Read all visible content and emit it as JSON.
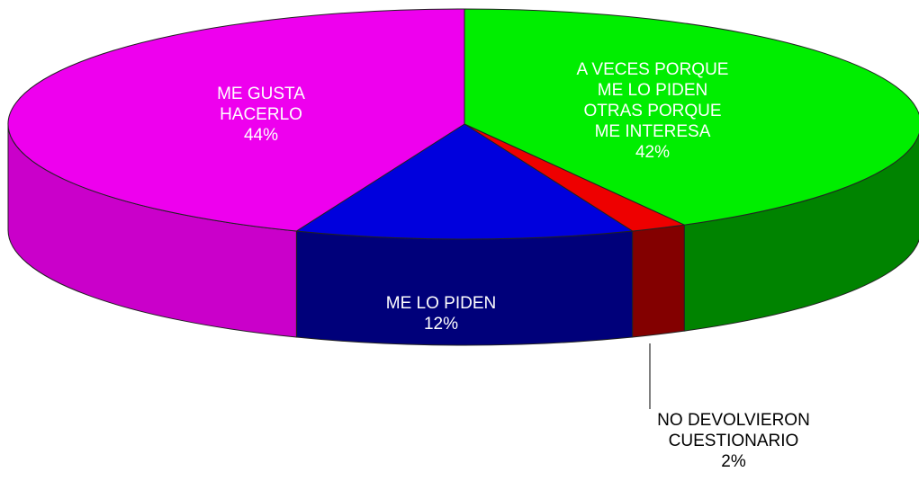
{
  "chart_data": {
    "type": "pie3d",
    "categories": [
      "A VECES PORQUE\nME LO PIDEN\nOTRAS PORQUE\nME INTERESA",
      "NO DEVOLVIERON\nCUESTIONARIO",
      "ME LO PIDEN",
      "ME GUSTA\nHACERLO"
    ],
    "values": [
      42,
      2,
      12,
      44
    ],
    "value_labels": [
      "42%",
      "2%",
      "12%",
      "44%"
    ],
    "colors": [
      "#00ee00",
      "#ee0000",
      "#0000dd",
      "#ee00ee"
    ]
  }
}
